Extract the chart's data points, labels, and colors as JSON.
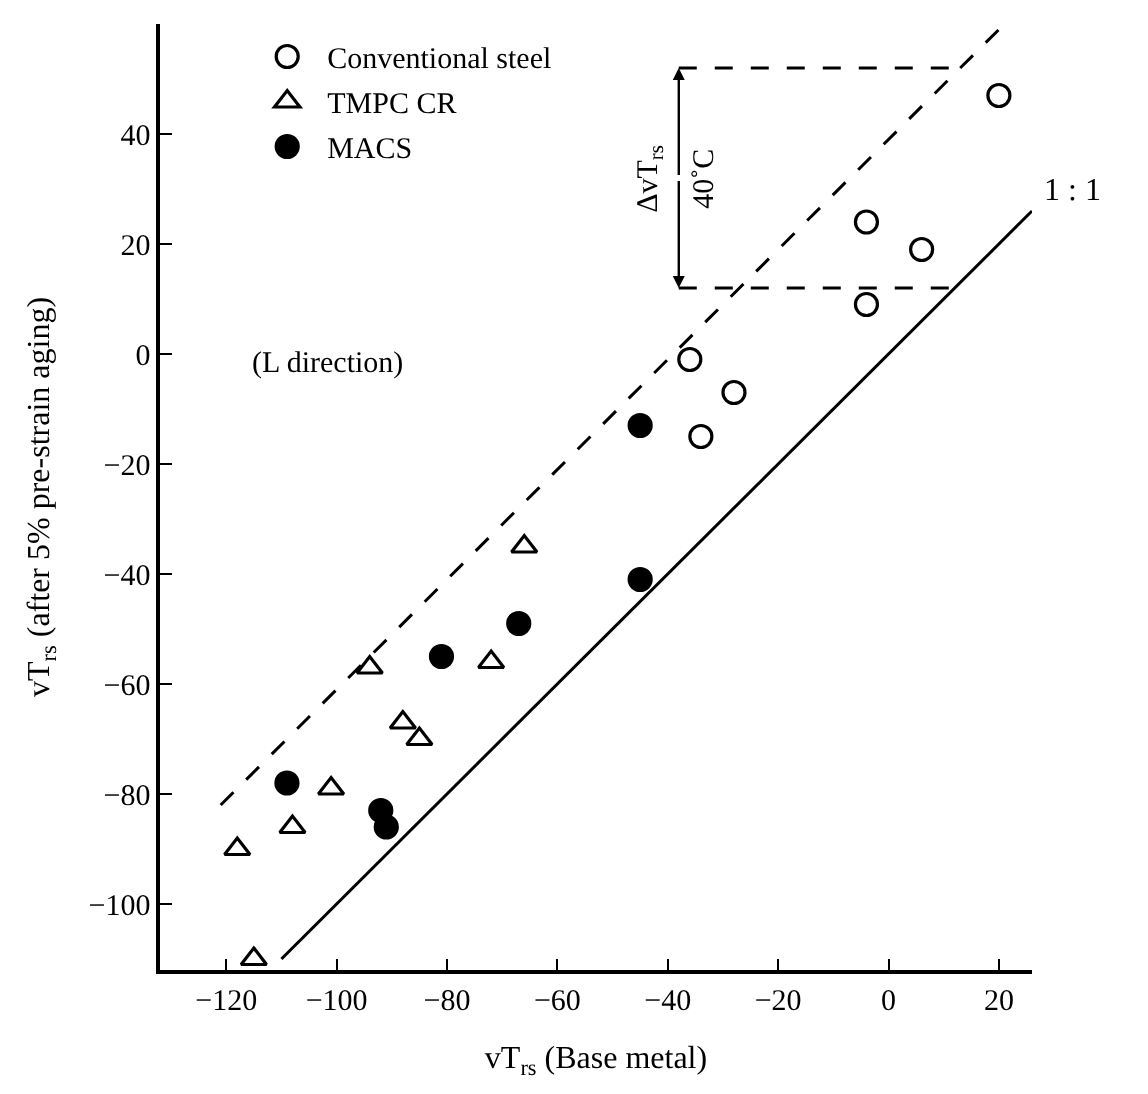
{
  "chart_data": {
    "type": "scatter",
    "xlabel": "vT$_{rs}$ (Base metal)",
    "ylabel": "vT$_{rs}$ (after 5% pre-strain aging)",
    "xlim": [
      -132,
      26
    ],
    "ylim": [
      -112,
      60
    ],
    "xticks": [
      -120,
      -100,
      -80,
      -60,
      -40,
      -20,
      0,
      20
    ],
    "yticks": [
      -100,
      -80,
      -60,
      -40,
      -20,
      0,
      20,
      40
    ],
    "grid": false,
    "legend": "top left",
    "series": [
      {
        "name": "Conventional steel",
        "color": "#000000",
        "marker": "circle-open",
        "x": [
          -36,
          -34,
          -28,
          -4,
          6,
          -4,
          20
        ],
        "values": [
          -1,
          -15,
          -7,
          24,
          19,
          9,
          47
        ]
      },
      {
        "name": "TMPC CR",
        "color": "#000000",
        "marker": "triangle-open",
        "x": [
          -66,
          -94,
          -72,
          -88,
          -85,
          -101,
          -108,
          -118,
          -115
        ],
        "values": [
          -35,
          -57,
          -56,
          -67,
          -70,
          -79,
          -86,
          -90,
          -110
        ]
      },
      {
        "name": "MACS",
        "color": "#000000",
        "marker": "circle",
        "x": [
          -45,
          -45,
          -67,
          -81,
          -109,
          -92,
          -91
        ],
        "values": [
          -13,
          -41,
          -49,
          -55,
          -78,
          -83,
          -86
        ]
      },
      {
        "name": "1 : 1",
        "type": "line",
        "color": "#000000",
        "line_style": "solid",
        "x": [
          -110,
          26
        ],
        "values": [
          -110,
          26
        ]
      },
      {
        "type": "line",
        "color": "#000000",
        "line_style": "dashed",
        "x": [
          -121,
          21
        ],
        "values": [
          -82,
          60
        ]
      },
      {
        "type": "line",
        "color": "#000000",
        "line_style": "dashed",
        "x": [
          -38,
          14
        ],
        "values": [
          52,
          52
        ]
      },
      {
        "type": "line",
        "color": "#000000",
        "line_style": "dashed",
        "x": [
          -38,
          12
        ],
        "values": [
          12,
          12
        ]
      }
    ],
    "annotations": [
      "(L direction)",
      {
        "text": "ΔvT$_{rs}$",
        "x": -38,
        "y": 52
      },
      {
        "text": "40˚C",
        "x": -38,
        "y": 12
      }
    ]
  }
}
